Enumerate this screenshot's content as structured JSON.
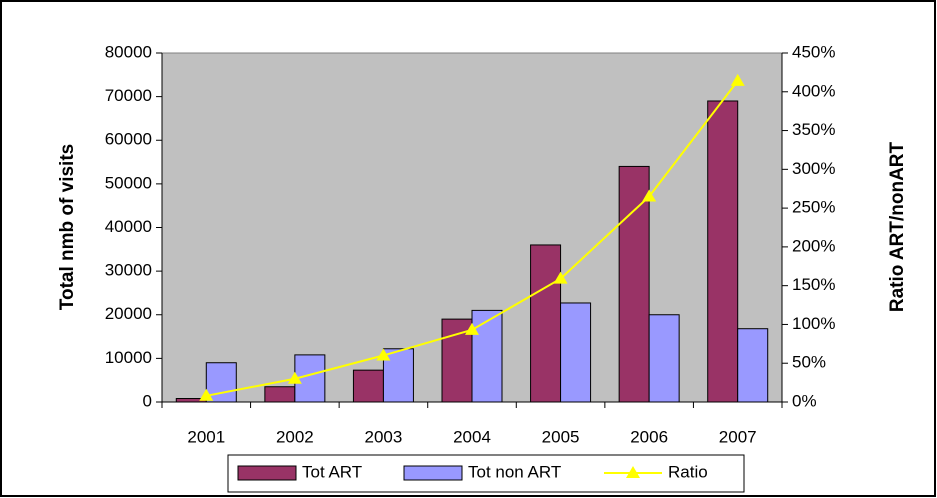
{
  "chart_data": {
    "type": "bar",
    "categories": [
      "2001",
      "2002",
      "2003",
      "2004",
      "2005",
      "2006",
      "2007"
    ],
    "series": [
      {
        "name": "Tot ART",
        "color": "#993366",
        "type": "bar",
        "values": [
          800,
          3500,
          7300,
          19000,
          36000,
          54000,
          69000
        ]
      },
      {
        "name": "Tot non ART",
        "color": "#9999ff",
        "type": "bar",
        "values": [
          9000,
          10800,
          12200,
          21000,
          22700,
          20000,
          16800
        ]
      },
      {
        "name": "Ratio",
        "color": "#ffff00",
        "type": "line",
        "axis": "y2",
        "values": [
          8,
          30,
          60,
          93,
          159,
          265,
          414
        ]
      }
    ],
    "ylabel": "Total nmb of visits",
    "y2label": "Ratio ART/nonART",
    "ylim": [
      0,
      80000
    ],
    "yticks": [
      0,
      10000,
      20000,
      30000,
      40000,
      50000,
      60000,
      70000,
      80000
    ],
    "y2lim": [
      0,
      450
    ],
    "y2ticks": [
      {
        "value": 0,
        "label": "0%"
      },
      {
        "value": 50,
        "label": "50%"
      },
      {
        "value": 100,
        "label": "100%"
      },
      {
        "value": 150,
        "label": "150%"
      },
      {
        "value": 200,
        "label": "200%"
      },
      {
        "value": 250,
        "label": "250%"
      },
      {
        "value": 300,
        "label": "300%"
      },
      {
        "value": 350,
        "label": "350%"
      },
      {
        "value": 400,
        "label": "400%"
      },
      {
        "value": 450,
        "label": "450%"
      }
    ],
    "plot_background": "#c0c0c0",
    "legend": "bottom"
  }
}
